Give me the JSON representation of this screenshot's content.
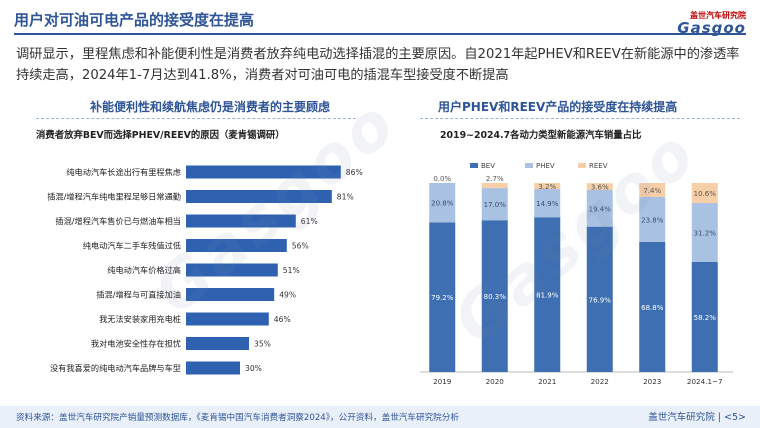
{
  "header": {
    "title": "用户对可油可电产品的接受度在提高",
    "brand_sub": "盖世汽车研究院",
    "brand_main": "Gasgoo"
  },
  "intro_text": "调研显示，里程焦虑和补能便利性是消费者放弃纯电动选择插混的主要原因。自2021年起PHEV和REEV在新能源中的渗透率持续走高，2024年1-7月达到41.8%，消费者对可油可电的插混车型接受度不断提高",
  "left_section_title": "补能便利性和续航焦虑仍是消费者的主要顾虑",
  "right_section_title": "用户PHEV和REEV产品的接受度在持续提高",
  "watermark": "Gasgoo",
  "footer": {
    "source": "资料来源：盖世汽车研究院产销量预测数据库，《麦肯锡中国汽车消费者洞察2024》，公开资料，盖世汽车研究院分析",
    "page": "盖世汽车研究院 | <5>"
  },
  "colors": {
    "bar_left": "#2e62b0",
    "bev": "#3e6fb2",
    "phev": "#a9c1e3",
    "reev": "#f6cfa9",
    "accent": "#2f5597"
  },
  "chart_data": [
    {
      "type": "bar",
      "orientation": "horizontal",
      "title": "消费者放弃BEV而选择PHEV/REEV的原因（麦肯锡调研）",
      "categories": [
        "纯电动汽车长途出行有里程焦虑",
        "插混/增程汽车纯电里程足够日常通勤",
        "插混/增程汽车售价已与燃油车相当",
        "纯电动汽车二手车残值过低",
        "纯电动汽车价格过高",
        "插混/增程与可直接加油",
        "我无法安装家用充电桩",
        "我对电池安全性存在担忧",
        "没有我喜爱的纯电动汽车品牌与车型"
      ],
      "values": [
        86,
        81,
        61,
        56,
        51,
        49,
        46,
        35,
        30
      ],
      "value_labels": [
        "86%",
        "81%",
        "61%",
        "56%",
        "51%",
        "49%",
        "46%",
        "35%",
        "30%"
      ],
      "xlim": [
        0,
        100
      ]
    },
    {
      "type": "bar",
      "stacked": true,
      "title": "2019~2024.7各动力类型新能源汽车销量占比",
      "categories": [
        "2019",
        "2020",
        "2021",
        "2022",
        "2023",
        "2024.1~7"
      ],
      "series": [
        {
          "name": "BEV",
          "values": [
            79.2,
            80.3,
            81.9,
            76.9,
            68.8,
            58.2
          ],
          "labels": [
            "79.2%",
            "80.3%",
            "81.9%",
            "76.9%",
            "68.8%",
            "58.2%"
          ]
        },
        {
          "name": "PHEV",
          "values": [
            20.8,
            17.0,
            14.9,
            19.4,
            23.8,
            31.2
          ],
          "labels": [
            "20.8%",
            "17.0%",
            "14.9%",
            "19.4%",
            "23.8%",
            "31.2%"
          ]
        },
        {
          "name": "REEV",
          "values": [
            0.0,
            2.7,
            3.2,
            3.6,
            7.4,
            10.6
          ],
          "labels": [
            "0.0%",
            "2.7%",
            "3.2%",
            "3.6%",
            "7.4%",
            "10.6%"
          ]
        }
      ],
      "ylim": [
        0,
        100
      ],
      "legend": "top"
    }
  ]
}
